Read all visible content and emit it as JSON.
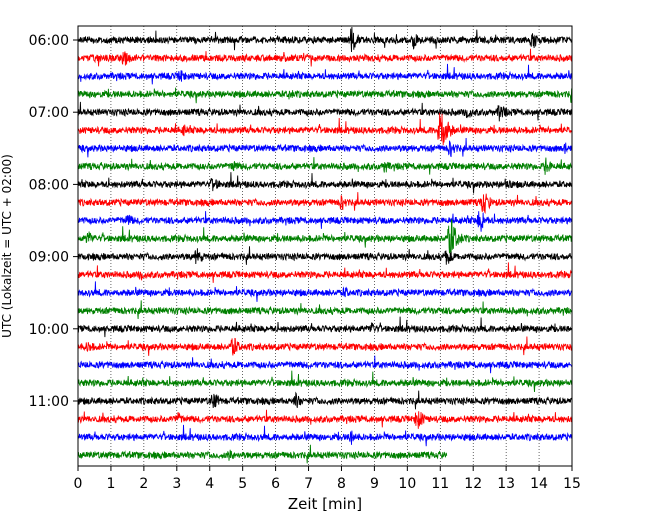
{
  "chart_data": {
    "type": "line",
    "title": "",
    "xlabel": "Zeit  [min]",
    "ylabel": "UTC (Lokalzeit = UTC + 02:00)",
    "xlim": [
      0,
      15
    ],
    "x_ticks": [
      0,
      1,
      2,
      3,
      4,
      5,
      6,
      7,
      8,
      9,
      10,
      11,
      12,
      13,
      14,
      15
    ],
    "y_tick_labels": [
      "06:00",
      "07:00",
      "08:00",
      "09:00",
      "10:00",
      "11:00"
    ],
    "y_tick_rows": [
      0,
      4,
      8,
      12,
      16,
      20
    ],
    "grid": "vertical-dotted",
    "trace_interval_min": 15,
    "color_cycle": [
      "#000000",
      "#ff0000",
      "#0000ff",
      "#008000"
    ],
    "n_traces": 24,
    "last_trace_end_min": 11.2,
    "events": [
      {
        "row": 0,
        "t": 8.3,
        "amp": 14
      },
      {
        "row": 0,
        "t": 10.2,
        "amp": 10
      },
      {
        "row": 0,
        "t": 13.8,
        "amp": 10
      },
      {
        "row": 1,
        "t": 1.4,
        "amp": 10
      },
      {
        "row": 2,
        "t": 3.1,
        "amp": 8
      },
      {
        "row": 3,
        "t": 6.4,
        "amp": 7
      },
      {
        "row": 3,
        "t": 15.0,
        "amp": 12
      },
      {
        "row": 4,
        "t": 11.8,
        "amp": 9
      },
      {
        "row": 4,
        "t": 12.8,
        "amp": 11
      },
      {
        "row": 5,
        "t": 11.0,
        "amp": 28
      },
      {
        "row": 5,
        "t": 3.2,
        "amp": 7
      },
      {
        "row": 6,
        "t": 11.3,
        "amp": 10
      },
      {
        "row": 6,
        "t": 14.8,
        "amp": 7
      },
      {
        "row": 7,
        "t": 4.7,
        "amp": 8
      },
      {
        "row": 7,
        "t": 9.3,
        "amp": 8
      },
      {
        "row": 7,
        "t": 14.2,
        "amp": 10
      },
      {
        "row": 8,
        "t": 4.1,
        "amp": 9
      },
      {
        "row": 8,
        "t": 13.0,
        "amp": 8
      },
      {
        "row": 9,
        "t": 12.3,
        "amp": 14
      },
      {
        "row": 9,
        "t": 8.0,
        "amp": 9
      },
      {
        "row": 10,
        "t": 1.5,
        "amp": 8
      },
      {
        "row": 10,
        "t": 12.2,
        "amp": 14
      },
      {
        "row": 11,
        "t": 0.3,
        "amp": 9
      },
      {
        "row": 11,
        "t": 11.3,
        "amp": 24
      },
      {
        "row": 12,
        "t": 3.6,
        "amp": 10
      },
      {
        "row": 12,
        "t": 11.2,
        "amp": 10
      },
      {
        "row": 13,
        "t": 1.9,
        "amp": 7
      },
      {
        "row": 14,
        "t": 8.1,
        "amp": 7
      },
      {
        "row": 16,
        "t": 8.9,
        "amp": 8
      },
      {
        "row": 17,
        "t": 4.7,
        "amp": 12
      },
      {
        "row": 17,
        "t": 0.3,
        "amp": 8
      },
      {
        "row": 20,
        "t": 4.1,
        "amp": 11
      },
      {
        "row": 20,
        "t": 6.6,
        "amp": 9
      },
      {
        "row": 21,
        "t": 10.3,
        "amp": 12
      },
      {
        "row": 21,
        "t": 3.0,
        "amp": 8
      },
      {
        "row": 22,
        "t": 8.3,
        "amp": 9
      },
      {
        "row": 23,
        "t": 4.6,
        "amp": 7
      }
    ]
  }
}
